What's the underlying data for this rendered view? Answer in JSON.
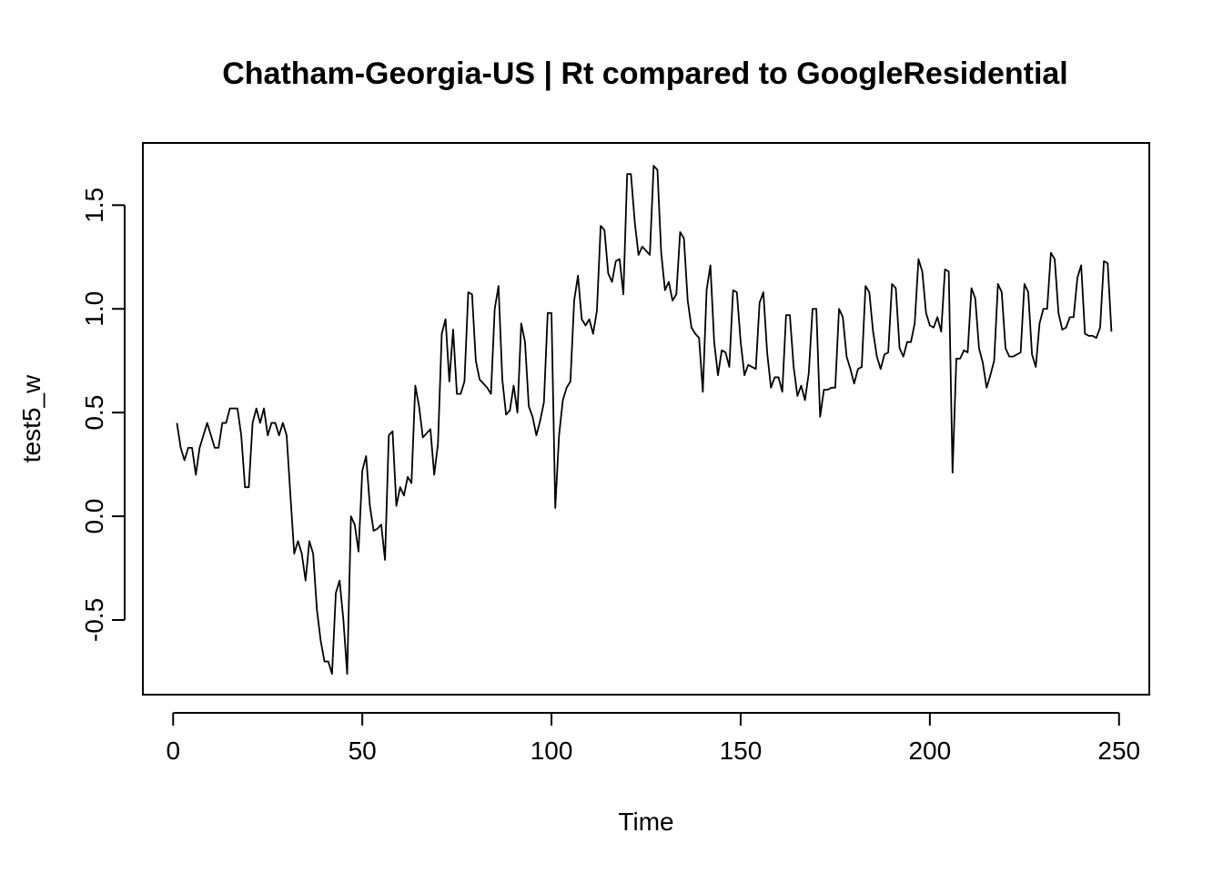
{
  "chart_data": {
    "type": "line",
    "title": "Chatham-Georgia-US | Rt compared to GoogleResidential",
    "xlabel": "Time",
    "ylabel": "test5_w",
    "xlim": [
      -8,
      258
    ],
    "ylim": [
      -0.86,
      1.8
    ],
    "x_ticks": [
      0,
      50,
      100,
      150,
      200,
      250
    ],
    "x_tick_labels": [
      "0",
      "50",
      "100",
      "150",
      "200",
      "250"
    ],
    "y_ticks": [
      -0.5,
      0.0,
      0.5,
      1.0,
      1.5
    ],
    "y_tick_labels": [
      "-0.5",
      "0.0",
      "0.5",
      "1.0",
      "1.5"
    ],
    "grid": false,
    "legend": "none",
    "line_color": "#000000",
    "series": [
      {
        "x_start": 1,
        "values": [
          0.45,
          0.33,
          0.27,
          0.33,
          0.33,
          0.2,
          0.33,
          0.39,
          0.45,
          0.39,
          0.33,
          0.33,
          0.45,
          0.45,
          0.52,
          0.52,
          0.52,
          0.39,
          0.14,
          0.14,
          0.45,
          0.52,
          0.45,
          0.52,
          0.39,
          0.45,
          0.45,
          0.39,
          0.45,
          0.39,
          0.1,
          -0.18,
          -0.12,
          -0.18,
          -0.31,
          -0.12,
          -0.18,
          -0.45,
          -0.6,
          -0.7,
          -0.7,
          -0.76,
          -0.37,
          -0.31,
          -0.5,
          -0.76,
          0.0,
          -0.04,
          -0.17,
          0.22,
          0.29,
          0.05,
          -0.07,
          -0.06,
          -0.04,
          -0.21,
          0.39,
          0.41,
          0.05,
          0.14,
          0.1,
          0.19,
          0.16,
          0.63,
          0.53,
          0.38,
          0.4,
          0.42,
          0.2,
          0.35,
          0.88,
          0.95,
          0.65,
          0.9,
          0.59,
          0.59,
          0.65,
          1.08,
          1.07,
          0.75,
          0.66,
          0.64,
          0.62,
          0.59,
          1.0,
          1.11,
          0.66,
          0.49,
          0.51,
          0.63,
          0.5,
          0.93,
          0.84,
          0.53,
          0.48,
          0.39,
          0.46,
          0.55,
          0.98,
          0.98,
          0.04,
          0.39,
          0.56,
          0.62,
          0.65,
          1.04,
          1.16,
          0.95,
          0.92,
          0.95,
          0.88,
          0.99,
          1.4,
          1.38,
          1.17,
          1.13,
          1.23,
          1.24,
          1.07,
          1.65,
          1.65,
          1.42,
          1.26,
          1.3,
          1.28,
          1.26,
          1.69,
          1.67,
          1.27,
          1.09,
          1.13,
          1.04,
          1.07,
          1.37,
          1.34,
          1.04,
          0.91,
          0.88,
          0.86,
          0.6,
          1.09,
          1.21,
          0.84,
          0.68,
          0.8,
          0.79,
          0.72,
          1.09,
          1.08,
          0.84,
          0.68,
          0.73,
          0.72,
          0.71,
          1.03,
          1.08,
          0.79,
          0.62,
          0.67,
          0.67,
          0.6,
          0.97,
          0.97,
          0.72,
          0.58,
          0.63,
          0.56,
          0.69,
          1.0,
          1.0,
          0.48,
          0.61,
          0.61,
          0.62,
          0.62,
          1.0,
          0.96,
          0.77,
          0.71,
          0.64,
          0.71,
          0.72,
          1.11,
          1.08,
          0.89,
          0.77,
          0.71,
          0.78,
          0.79,
          1.12,
          1.1,
          0.81,
          0.77,
          0.84,
          0.84,
          0.93,
          1.24,
          1.18,
          0.98,
          0.92,
          0.91,
          0.96,
          0.89,
          1.19,
          1.18,
          0.21,
          0.76,
          0.76,
          0.8,
          0.79,
          1.1,
          1.05,
          0.81,
          0.74,
          0.62,
          0.68,
          0.75,
          1.12,
          1.08,
          0.81,
          0.77,
          0.77,
          0.78,
          0.79,
          1.12,
          1.08,
          0.78,
          0.72,
          0.93,
          1.0,
          1.0,
          1.27,
          1.24,
          0.98,
          0.9,
          0.91,
          0.96,
          0.96,
          1.15,
          1.21,
          0.88,
          0.87,
          0.87,
          0.86,
          0.91,
          1.23,
          1.22,
          0.89
        ]
      }
    ]
  }
}
